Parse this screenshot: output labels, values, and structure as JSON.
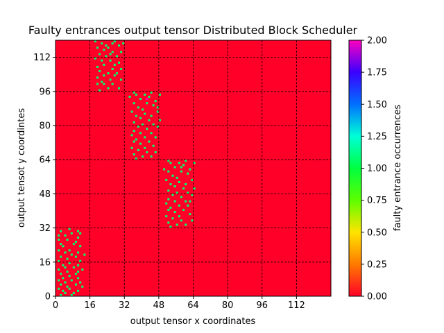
{
  "chart_data": {
    "type": "heatmap",
    "title": "Faulty entrances output tensor Distributed Block Scheduler",
    "xlabel": "output tensor x coordinates",
    "ylabel": "output tensot y coordintes",
    "xlim": [
      0,
      128
    ],
    "ylim": [
      0,
      120
    ],
    "x_ticks": [
      "0",
      "16",
      "32",
      "48",
      "64",
      "80",
      "96",
      "112"
    ],
    "y_ticks": [
      "0",
      "16",
      "32",
      "48",
      "64",
      "80",
      "96",
      "112"
    ],
    "grid": true,
    "background_value": 0,
    "colormap": "gist_rainbow",
    "colorbar": {
      "label": "faulty entrance occurrences",
      "range": [
        0,
        2
      ],
      "ticks": [
        "0.00",
        "0.25",
        "0.50",
        "0.75",
        "1.00",
        "1.25",
        "1.50",
        "1.75",
        "2.00"
      ]
    },
    "fault_clusters": [
      {
        "x_range": [
          0,
          15
        ],
        "y_range": [
          0,
          31
        ],
        "typical_value": 1
      },
      {
        "x_range": [
          18,
          32
        ],
        "y_range": [
          96,
          120
        ],
        "typical_value": 1
      },
      {
        "x_range": [
          35,
          50
        ],
        "y_range": [
          64,
          96
        ],
        "typical_value": 1
      },
      {
        "x_range": [
          51,
          66
        ],
        "y_range": [
          32,
          64
        ],
        "typical_value": 1
      }
    ],
    "cells": [
      [
        2,
        0,
        1
      ],
      [
        4,
        1,
        1
      ],
      [
        7,
        0,
        1
      ],
      [
        8,
        1,
        1
      ],
      [
        3,
        2,
        1
      ],
      [
        6,
        3,
        1
      ],
      [
        10,
        2,
        1
      ],
      [
        1,
        3,
        1
      ],
      [
        12,
        4,
        1
      ],
      [
        5,
        4,
        1
      ],
      [
        2,
        5,
        1
      ],
      [
        9,
        5,
        1
      ],
      [
        4,
        6,
        1
      ],
      [
        11,
        6,
        1
      ],
      [
        1,
        7,
        1
      ],
      [
        7,
        7,
        1
      ],
      [
        3,
        8,
        1
      ],
      [
        10,
        8,
        1
      ],
      [
        6,
        9,
        1
      ],
      [
        2,
        10,
        1
      ],
      [
        9,
        10,
        1
      ],
      [
        10,
        11,
        1
      ],
      [
        5,
        11,
        1
      ],
      [
        12,
        12,
        1
      ],
      [
        1,
        12,
        1
      ],
      [
        4,
        13,
        1
      ],
      [
        8,
        13,
        1
      ],
      [
        3,
        14,
        1
      ],
      [
        10,
        14,
        1
      ],
      [
        6,
        15,
        1
      ],
      [
        1,
        16,
        1
      ],
      [
        11,
        16,
        1
      ],
      [
        5,
        17,
        1
      ],
      [
        9,
        18,
        1
      ],
      [
        2,
        18,
        1
      ],
      [
        7,
        19,
        1
      ],
      [
        13,
        19,
        1
      ],
      [
        4,
        20,
        1
      ],
      [
        10,
        20,
        1
      ],
      [
        1,
        21,
        1
      ],
      [
        6,
        21,
        1
      ],
      [
        3,
        23,
        1
      ],
      [
        11,
        23,
        1
      ],
      [
        8,
        24,
        1
      ],
      [
        2,
        24,
        1
      ],
      [
        9,
        25,
        1
      ],
      [
        5,
        26,
        1
      ],
      [
        1,
        26,
        1
      ],
      [
        10,
        27,
        1
      ],
      [
        4,
        28,
        1
      ],
      [
        1,
        28,
        1
      ],
      [
        11,
        29,
        1
      ],
      [
        7,
        29,
        1
      ],
      [
        2,
        30,
        1
      ],
      [
        10,
        30,
        1
      ],
      [
        6,
        31,
        1
      ],
      [
        20,
        96,
        1
      ],
      [
        24,
        97,
        1
      ],
      [
        29,
        97,
        1
      ],
      [
        19,
        99,
        1
      ],
      [
        22,
        99,
        1
      ],
      [
        26,
        99,
        1
      ],
      [
        21,
        100,
        1
      ],
      [
        25,
        101,
        1
      ],
      [
        30,
        101,
        1
      ],
      [
        19,
        102,
        1
      ],
      [
        22,
        103,
        1
      ],
      [
        27,
        103,
        1
      ],
      [
        28,
        104,
        1
      ],
      [
        24,
        104,
        1
      ],
      [
        20,
        105,
        1
      ],
      [
        30,
        106,
        1
      ],
      [
        26,
        106,
        1
      ],
      [
        19,
        107,
        1
      ],
      [
        22,
        108,
        1
      ],
      [
        27,
        108,
        1
      ],
      [
        29,
        109,
        1
      ],
      [
        21,
        110,
        1
      ],
      [
        25,
        110,
        1
      ],
      [
        18,
        111,
        1
      ],
      [
        23,
        112,
        1
      ],
      [
        28,
        112,
        1
      ],
      [
        20,
        113,
        1
      ],
      [
        26,
        114,
        1
      ],
      [
        22,
        115,
        1
      ],
      [
        19,
        116,
        1
      ],
      [
        24,
        116,
        1
      ],
      [
        29,
        117,
        1
      ],
      [
        21,
        118,
        1
      ],
      [
        26,
        118,
        1
      ],
      [
        18,
        119,
        1
      ],
      [
        31,
        118,
        1
      ],
      [
        27,
        119,
        1
      ],
      [
        23,
        117,
        1
      ],
      [
        30,
        114,
        1
      ],
      [
        25,
        113,
        1
      ],
      [
        37,
        64,
        1
      ],
      [
        40,
        65,
        1
      ],
      [
        44,
        65,
        1
      ],
      [
        36,
        66,
        1
      ],
      [
        42,
        67,
        1
      ],
      [
        46,
        67,
        1
      ],
      [
        38,
        68,
        1
      ],
      [
        35,
        69,
        1
      ],
      [
        41,
        69,
        1
      ],
      [
        45,
        70,
        1
      ],
      [
        39,
        71,
        1
      ],
      [
        36,
        72,
        1
      ],
      [
        43,
        72,
        1
      ],
      [
        37,
        73,
        1
      ],
      [
        46,
        74,
        1
      ],
      [
        41,
        74,
        1
      ],
      [
        35,
        75,
        1
      ],
      [
        44,
        76,
        1
      ],
      [
        39,
        76,
        1
      ],
      [
        36,
        77,
        1
      ],
      [
        42,
        78,
        1
      ],
      [
        47,
        79,
        1
      ],
      [
        38,
        79,
        1
      ],
      [
        40,
        80,
        1
      ],
      [
        45,
        80,
        1
      ],
      [
        36,
        81,
        1
      ],
      [
        43,
        82,
        1
      ],
      [
        48,
        82,
        1
      ],
      [
        39,
        83,
        1
      ],
      [
        37,
        84,
        1
      ],
      [
        44,
        84,
        1
      ],
      [
        41,
        85,
        1
      ],
      [
        35,
        86,
        1
      ],
      [
        47,
        86,
        1
      ],
      [
        40,
        87,
        1
      ],
      [
        38,
        88,
        1
      ],
      [
        45,
        89,
        1
      ],
      [
        42,
        90,
        1
      ],
      [
        36,
        90,
        1
      ],
      [
        46,
        91,
        1
      ],
      [
        39,
        92,
        1
      ],
      [
        43,
        93,
        1
      ],
      [
        37,
        94,
        1
      ],
      [
        41,
        94,
        1
      ],
      [
        48,
        94,
        1
      ],
      [
        44,
        95,
        1
      ],
      [
        36,
        95,
        1
      ],
      [
        42,
        92,
        2
      ],
      [
        47,
        88,
        1
      ],
      [
        34,
        93,
        1
      ],
      [
        53,
        32,
        1
      ],
      [
        56,
        33,
        1
      ],
      [
        60,
        33,
        1
      ],
      [
        52,
        34,
        1
      ],
      [
        58,
        35,
        1
      ],
      [
        63,
        35,
        1
      ],
      [
        54,
        36,
        1
      ],
      [
        51,
        37,
        1
      ],
      [
        57,
        37,
        1
      ],
      [
        62,
        38,
        1
      ],
      [
        55,
        39,
        1
      ],
      [
        52,
        40,
        1
      ],
      [
        59,
        40,
        1
      ],
      [
        53,
        41,
        1
      ],
      [
        61,
        42,
        1
      ],
      [
        57,
        42,
        1
      ],
      [
        51,
        43,
        1
      ],
      [
        60,
        44,
        1
      ],
      [
        55,
        44,
        1
      ],
      [
        52,
        45,
        1
      ],
      [
        58,
        46,
        1
      ],
      [
        63,
        47,
        1
      ],
      [
        54,
        47,
        1
      ],
      [
        56,
        48,
        1
      ],
      [
        61,
        48,
        1
      ],
      [
        52,
        49,
        1
      ],
      [
        59,
        50,
        1
      ],
      [
        64,
        50,
        1
      ],
      [
        55,
        51,
        1
      ],
      [
        53,
        52,
        1
      ],
      [
        60,
        52,
        1
      ],
      [
        57,
        53,
        1
      ],
      [
        51,
        54,
        1
      ],
      [
        63,
        54,
        1
      ],
      [
        56,
        55,
        1
      ],
      [
        54,
        56,
        1
      ],
      [
        61,
        57,
        1
      ],
      [
        58,
        58,
        1
      ],
      [
        52,
        58,
        1
      ],
      [
        62,
        59,
        1
      ],
      [
        55,
        60,
        1
      ],
      [
        59,
        61,
        1
      ],
      [
        53,
        62,
        1
      ],
      [
        57,
        62,
        1
      ],
      [
        64,
        62,
        1
      ],
      [
        60,
        63,
        1
      ],
      [
        52,
        63,
        1
      ],
      [
        58,
        60,
        1
      ],
      [
        50,
        59,
        1
      ],
      [
        62,
        44,
        1
      ]
    ]
  }
}
